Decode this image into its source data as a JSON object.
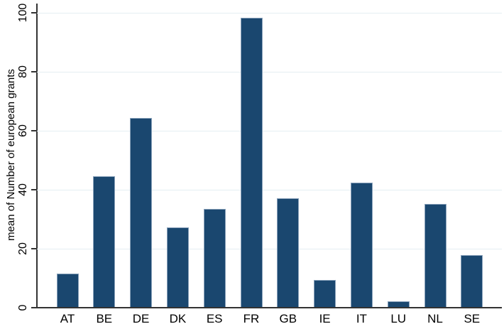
{
  "chart_data": {
    "type": "bar",
    "title": "",
    "xlabel": "",
    "ylabel": "mean of Number of european grants",
    "categories": [
      "AT",
      "BE",
      "DE",
      "DK",
      "ES",
      "FR",
      "GB",
      "IE",
      "IT",
      "LU",
      "NL",
      "SE"
    ],
    "values": [
      11.5,
      44.5,
      64.5,
      27.3,
      33.5,
      98.3,
      37.2,
      9.5,
      42.5,
      2.2,
      35.2,
      17.9
    ],
    "ylim": [
      0,
      100
    ],
    "yticks": [
      0,
      20,
      40,
      60,
      80,
      100
    ],
    "grid": "horizontal",
    "legend": "none",
    "colors": {
      "background": "#ffffff",
      "bar_fill": "#1a476f",
      "bar_border": "#8aa2bb",
      "gridline": "#e4eef2",
      "axis": "#333333",
      "text": "#000000"
    }
  }
}
